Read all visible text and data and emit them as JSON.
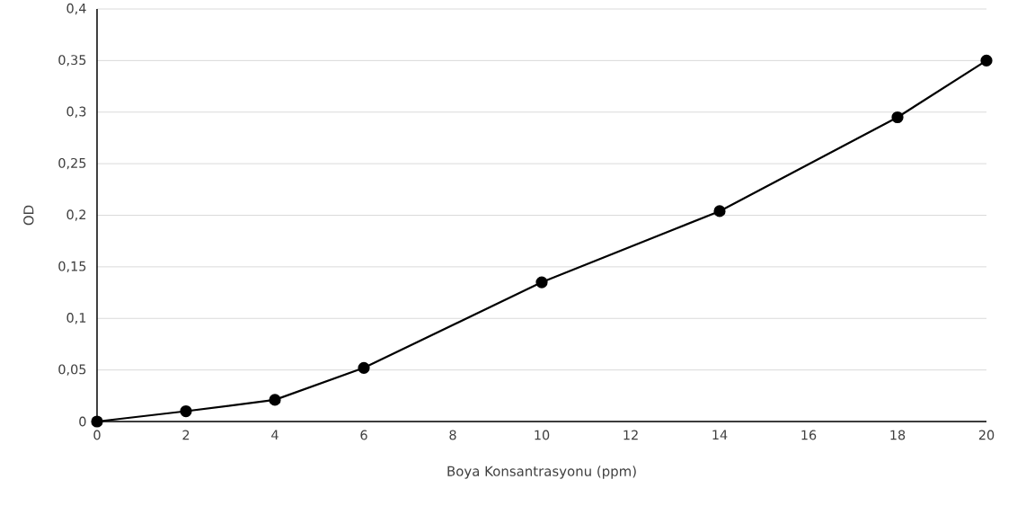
{
  "chart_data": {
    "type": "line",
    "xlabel": "Boya Konsantrasyonu (ppm)",
    "ylabel": "OD",
    "x": [
      0,
      2,
      4,
      6,
      10,
      14,
      18,
      20
    ],
    "series": [
      {
        "color": "#000000",
        "values": [
          0,
          0.01,
          0.021,
          0.052,
          0.135,
          0.204,
          0.295,
          0.35
        ]
      }
    ],
    "xlim": [
      0,
      20
    ],
    "xticks": [
      0,
      2,
      4,
      6,
      8,
      10,
      12,
      14,
      16,
      18,
      20
    ],
    "ylim": [
      0,
      0.4
    ],
    "yticks": [
      0,
      {
        "value": 0.05,
        "label": "0,05"
      },
      {
        "value": 0.1,
        "label": "0,1"
      },
      {
        "value": 0.15,
        "label": "0,15"
      },
      {
        "value": 0.2,
        "label": "0,2"
      },
      {
        "value": 0.25,
        "label": "0,25"
      },
      {
        "value": 0.3,
        "label": "0,3"
      },
      {
        "value": 0.35,
        "label": "0,35"
      },
      {
        "value": 0.4,
        "label": "0,4"
      }
    ],
    "grid": "y",
    "marker": "circle",
    "line_style": "solid"
  }
}
